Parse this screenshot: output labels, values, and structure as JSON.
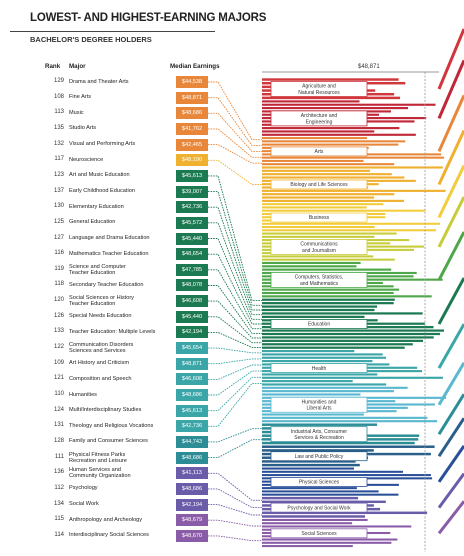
{
  "chart_data": {
    "type": "bar",
    "title": "LOWEST- AND HIGHEST-EARNING MAJORS",
    "subtitle": "BACHELOR'S DEGREE HOLDERS",
    "headers": {
      "rank": "Rank",
      "major": "Major",
      "earnings": "Median Earnings"
    },
    "reference_line_label": "$48,871",
    "reference_value": 48871,
    "rows": [
      {
        "rank": "129",
        "major": "Drama and Theater Arts",
        "earnings": "$44,538",
        "value": 44538,
        "color": "#e8873a"
      },
      {
        "rank": "108",
        "major": "Fine Arts",
        "earnings": "$48,871",
        "value": 48871,
        "color": "#e8873a"
      },
      {
        "rank": "113",
        "major": "Music",
        "earnings": "$48,686",
        "value": 48686,
        "color": "#e8873a"
      },
      {
        "rank": "135",
        "major": "Studio Arts",
        "earnings": "$41,762",
        "value": 41762,
        "color": "#e8873a"
      },
      {
        "rank": "132",
        "major": "Visual and Performing Arts",
        "earnings": "$42,465",
        "value": 42465,
        "color": "#e8873a"
      },
      {
        "rank": "117",
        "major": "Neuroscience",
        "earnings": "$48,190",
        "value": 48190,
        "color": "#f0b030"
      },
      {
        "rank": "123",
        "major": "Art and Music Education",
        "earnings": "$45,613",
        "value": 45613,
        "color": "#1c7a52"
      },
      {
        "rank": "137",
        "major": "Early Childhood Education",
        "earnings": "$39,007",
        "value": 39007,
        "color": "#1c7a52"
      },
      {
        "rank": "130",
        "major": "Elementary Education",
        "earnings": "$42,736",
        "value": 42736,
        "color": "#1c7a52"
      },
      {
        "rank": "125",
        "major": "General Education",
        "earnings": "$45,572",
        "value": 45572,
        "color": "#1c7a52"
      },
      {
        "rank": "127",
        "major": "Language and Drama Education",
        "earnings": "$45,440",
        "value": 45440,
        "color": "#1c7a52"
      },
      {
        "rank": "116",
        "major": "Mathematics Teacher Education",
        "earnings": "$48,654",
        "value": 48654,
        "color": "#1c7a52"
      },
      {
        "rank": "119",
        "major": "Science and Computer\nTeacher Education",
        "earnings": "$47,785",
        "value": 47785,
        "color": "#1c7a52"
      },
      {
        "rank": "118",
        "major": "Secondary Teacher Education",
        "earnings": "$48,078",
        "value": 48078,
        "color": "#1c7a52"
      },
      {
        "rank": "120",
        "major": "Social Sciences or History\nTeacher Education",
        "earnings": "$46,608",
        "value": 46608,
        "color": "#1c7a52"
      },
      {
        "rank": "126",
        "major": "Special Needs Education",
        "earnings": "$45,440",
        "value": 45440,
        "color": "#1c7a52"
      },
      {
        "rank": "133",
        "major": "Teacher Education: Multiple Levels",
        "earnings": "$42,194",
        "value": 42194,
        "color": "#1c7a52"
      },
      {
        "rank": "122",
        "major": "Communication Disorders\nSciences and Services",
        "earnings": "$45,654",
        "value": 45654,
        "color": "#3aa6a8"
      },
      {
        "rank": "109",
        "major": "Art History and Criticism",
        "earnings": "$48,871",
        "value": 48871,
        "color": "#3aa6a8"
      },
      {
        "rank": "121",
        "major": "Composition and Speech",
        "earnings": "$46,608",
        "value": 46608,
        "color": "#3aa6a8"
      },
      {
        "rank": "110",
        "major": "Humanities",
        "earnings": "$48,686",
        "value": 48686,
        "color": "#3aa6a8"
      },
      {
        "rank": "124",
        "major": "Multi/Interdisciplinary Studies",
        "earnings": "$45,613",
        "value": 45613,
        "color": "#3aa6a8"
      },
      {
        "rank": "131",
        "major": "Theology and Religious Vocations",
        "earnings": "$42,736",
        "value": 42736,
        "color": "#3aa6a8"
      },
      {
        "rank": "128",
        "major": "Family and Consumer Sciences",
        "earnings": "$44,743",
        "value": 44743,
        "color": "#2d8d96"
      },
      {
        "rank": "111",
        "major": "Physical Fitness Parks\nRecreation and Leisure",
        "earnings": "$48,686",
        "value": 48686,
        "color": "#2d8d96"
      },
      {
        "rank": "136",
        "major": "Human Services and\nCommunity Organization",
        "earnings": "$41,113",
        "value": 41113,
        "color": "#6a5ca8"
      },
      {
        "rank": "112",
        "major": "Psychology",
        "earnings": "$48,686",
        "value": 48686,
        "color": "#6a5ca8"
      },
      {
        "rank": "134",
        "major": "Social Work",
        "earnings": "$42,194",
        "value": 42194,
        "color": "#6a5ca8"
      },
      {
        "rank": "115",
        "major": "Anthropology and Archeology",
        "earnings": "$48,679",
        "value": 48679,
        "color": "#8a5ca8"
      },
      {
        "rank": "114",
        "major": "Interdisciplinary Social Sciences",
        "earnings": "$48,670",
        "value": 48670,
        "color": "#8a5ca8"
      }
    ],
    "categories": [
      {
        "label": "Agriculture and\nNatural Resources",
        "color": "#d0363c"
      },
      {
        "label": "Architecture and\nEngineering",
        "color": "#c02838"
      },
      {
        "label": "Arts",
        "color": "#e8873a"
      },
      {
        "label": "Biology and Life Sciences",
        "color": "#f0b030"
      },
      {
        "label": "Business",
        "color": "#f2cc3a"
      },
      {
        "label": "Communications\nand Journalism",
        "color": "#c6cc3a"
      },
      {
        "label": "Computers, Statistics,\nand Mathematics",
        "color": "#4ea84a"
      },
      {
        "label": "Education",
        "color": "#1c7a52"
      },
      {
        "label": "Health",
        "color": "#3aa6a8"
      },
      {
        "label": "Humanities and\nLiberal Arts",
        "color": "#5ab8d0"
      },
      {
        "label": "Industrial Arts, Consumer\nServices & Recreation",
        "color": "#2d8d96"
      },
      {
        "label": "Law and Public Policy",
        "color": "#2a5f8a"
      },
      {
        "label": "Physical Sciences",
        "color": "#2a4f98"
      },
      {
        "label": "Psychology and Social Work",
        "color": "#6a5ca8"
      },
      {
        "label": "Social Sciences",
        "color": "#8a5ca8"
      }
    ]
  }
}
